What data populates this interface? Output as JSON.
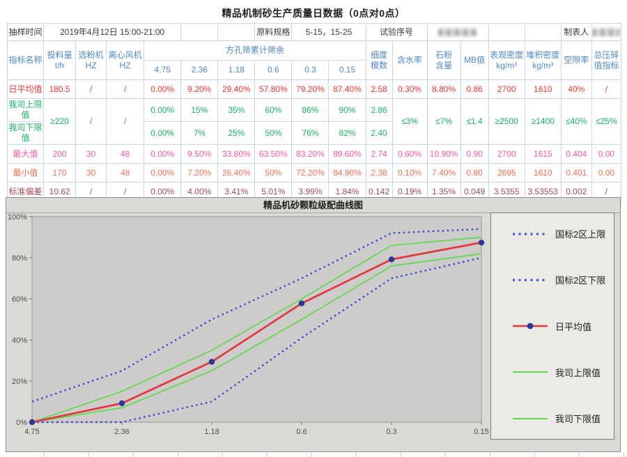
{
  "page_title": "精品机制砂生产质量日数据（0点对0点）",
  "info": {
    "cells": [
      {
        "t": "抽样时间",
        "cs": 1,
        "n": "sampling-time-label"
      },
      {
        "t": "2019年4月12日 15:00-21:00",
        "cs": 4,
        "n": "sampling-time-value"
      },
      {
        "t": "",
        "cs": 1,
        "n": "info-spacer"
      },
      {
        "t": "",
        "cs": 1,
        "n": "info-spacer"
      },
      {
        "t": "原料规格",
        "cs": 1,
        "n": "material-spec-label"
      },
      {
        "t": "5-15，15-25",
        "cs": 2,
        "n": "material-spec-value"
      },
      {
        "t": "试验序号",
        "cs": 2,
        "n": "test-serial-label"
      },
      {
        "t": "",
        "cs": 2,
        "n": "test-serial-value-redacted",
        "redacted": true,
        "w": 56
      },
      {
        "t": "",
        "cs": 1,
        "n": "info-spacer"
      },
      {
        "t": "",
        "cs": 1,
        "n": "info-spacer"
      },
      {
        "t": "制表人",
        "cs": 1,
        "n": "preparer-label"
      },
      {
        "t": "",
        "cs": 1,
        "n": "preparer-value-redacted",
        "redacted": true,
        "w": 40
      }
    ]
  },
  "table": {
    "header": {
      "row_label": "指标名称",
      "pre_sieve": [
        "投料量\nt/h",
        "选粉机\nHZ",
        "离心风机\nHZ"
      ],
      "sieve_group_label": "方孔筛累计筛余",
      "sieve_sizes": [
        "4.75",
        "2.36",
        "1.18",
        "0.6",
        "0.3",
        "0.15"
      ],
      "post_sieve": [
        "细度\n模数",
        "含水率",
        "石粉\n含量",
        "MB值",
        "表观密度\nkg/m³",
        "堆积密度\nkg/m³",
        "空隙率",
        "总压碎\n值指标"
      ]
    },
    "rows": [
      {
        "label": "日平均值",
        "cls": "red",
        "cells": [
          "180.5",
          "/",
          "/",
          "0.00%",
          "9.20%",
          "29.40%",
          "57.80%",
          "79.20%",
          "87.40%",
          "2.58",
          "0.30%",
          "8.80%",
          "0.86",
          "2700",
          "1610",
          "40%",
          "/"
        ]
      },
      {
        "label": "我司上限值",
        "cls": "green",
        "cells": [
          {
            "t": "≥220",
            "rs": 2
          },
          {
            "t": "/",
            "rs": 2
          },
          {
            "t": "/",
            "rs": 2
          },
          "0.00%",
          "15%",
          "35%",
          "60%",
          "86%",
          "90%",
          "2.86",
          {
            "t": "≤3%",
            "rs": 2
          },
          {
            "t": "≤7%",
            "rs": 2
          },
          {
            "t": "≤1.4",
            "rs": 2
          },
          {
            "t": "≥2500",
            "rs": 2
          },
          {
            "t": "≥1400",
            "rs": 2
          },
          {
            "t": "≤40%",
            "rs": 2
          },
          {
            "t": "≤25%",
            "rs": 2
          }
        ]
      },
      {
        "label": "我司下限值",
        "cls": "green",
        "cells": [
          "0.00%",
          "7%",
          "25%",
          "50%",
          "76%",
          "82%",
          "2.40"
        ]
      },
      {
        "label": "最大值",
        "cls": "pink",
        "cells": [
          "200",
          "30",
          "48",
          "0.00%",
          "9.50%",
          "33.80%",
          "63.50%",
          "83.20%",
          "89.60%",
          "2.74",
          "0.60%",
          "10.90%",
          "0.90",
          "2700",
          "1615",
          "0.404",
          "0.00"
        ]
      },
      {
        "label": "最小值",
        "cls": "coral",
        "cells": [
          "170",
          "30",
          "48",
          "0.00%",
          "7.20%",
          "26.40%",
          "50%",
          "72.20%",
          "84.90%",
          "2.38",
          "0.10%",
          "7.40%",
          "0.80",
          "2695",
          "1610",
          "0.401",
          "0.00"
        ]
      },
      {
        "label": "标准偏差",
        "cls": "maroon",
        "cells": [
          "10.62",
          "/",
          "/",
          "0.00%",
          "4.00%",
          "3.41%",
          "5.01%",
          "3.99%",
          "1.84%",
          "0.142",
          "0.19%",
          "1.35%",
          "0.049",
          "3.5355",
          "3.53553",
          "0.002",
          "/"
        ]
      },
      {
        "label": "",
        "cls": "empty",
        "cells": [
          "",
          "",
          "",
          "",
          "",
          "",
          "",
          "",
          "",
          "",
          "",
          "",
          "",
          "",
          "",
          "",
          ""
        ]
      }
    ]
  },
  "chart_data": {
    "type": "line",
    "title": "精品机砂颗粒级配曲线图",
    "categories": [
      "4.75",
      "2.36",
      "1.18",
      "0.6",
      "0.3",
      "0.15"
    ],
    "xlabel": "",
    "ylabel": "",
    "ylim": [
      0,
      100
    ],
    "yticks": [
      "0%",
      "20%",
      "40%",
      "60%",
      "80%",
      "100%"
    ],
    "grid": false,
    "legend_position": "right",
    "series": [
      {
        "name": "国标2区上限",
        "values": [
          10,
          25,
          50,
          70,
          92,
          94
        ],
        "style": "dotted",
        "color": "#3947d6"
      },
      {
        "name": "国标2区下限",
        "values": [
          0,
          0,
          10,
          41,
          70,
          80
        ],
        "style": "dotted",
        "color": "#3947d6"
      },
      {
        "name": "日平均值",
        "values": [
          0,
          9.2,
          29.4,
          57.8,
          79.2,
          87.4
        ],
        "style": "solid-marker",
        "color": "#e23940",
        "marker": "#283a96"
      },
      {
        "name": "我司上限值",
        "values": [
          0,
          15,
          35,
          60,
          86,
          90
        ],
        "style": "solid",
        "color": "#5fd94c"
      },
      {
        "name": "我司下限值",
        "values": [
          0,
          7,
          25,
          50,
          76,
          82
        ],
        "style": "solid",
        "color": "#5fd94c"
      }
    ]
  }
}
